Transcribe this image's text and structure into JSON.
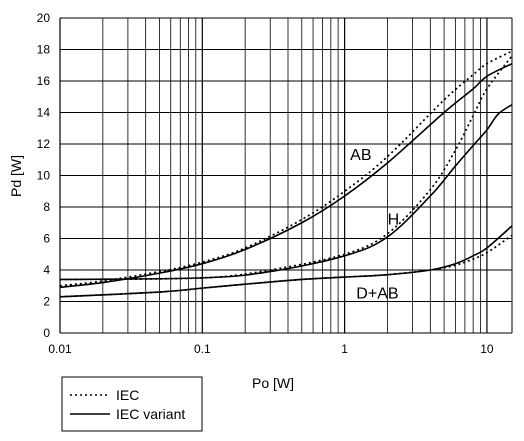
{
  "chart_data": {
    "type": "line",
    "xscale": "log",
    "xlim": [
      0.01,
      15
    ],
    "ylim": [
      0,
      20
    ],
    "xlabel": "Po [W]",
    "ylabel": "Pd [W]",
    "xticks": [
      "0.01",
      "0.1",
      "1",
      "10"
    ],
    "yticks": [
      "0",
      "2",
      "4",
      "6",
      "8",
      "10",
      "12",
      "14",
      "16",
      "18",
      "20"
    ],
    "grid": true,
    "legend_position": "bottom-left",
    "legend": [
      {
        "label": "IEC",
        "style": "dotted"
      },
      {
        "label": "IEC variant",
        "style": "solid"
      }
    ],
    "series": [
      {
        "curve": "AB",
        "style": "dotted",
        "x": [
          0.01,
          0.02,
          0.05,
          0.1,
          0.2,
          0.5,
          1,
          2,
          5,
          8,
          10,
          15
        ],
        "y": [
          3.0,
          3.3,
          3.9,
          4.5,
          5.4,
          7.2,
          9.0,
          11.2,
          14.8,
          16.4,
          17.1,
          17.9
        ]
      },
      {
        "curve": "AB",
        "style": "solid",
        "x": [
          0.01,
          0.02,
          0.05,
          0.1,
          0.2,
          0.5,
          1,
          2,
          5,
          8,
          10,
          15
        ],
        "y": [
          2.9,
          3.2,
          3.8,
          4.4,
          5.3,
          7.0,
          8.7,
          10.8,
          14.0,
          15.5,
          16.3,
          17.1
        ]
      },
      {
        "curve": "H",
        "style": "dotted",
        "x": [
          0.01,
          0.1,
          0.3,
          1,
          2,
          4,
          6,
          8,
          10,
          15
        ],
        "y": [
          3.4,
          3.5,
          4.0,
          5.0,
          6.3,
          9.1,
          11.6,
          13.8,
          15.5,
          17.6
        ]
      },
      {
        "curve": "H",
        "style": "solid",
        "x": [
          0.01,
          0.1,
          0.3,
          1,
          2,
          4,
          6,
          8,
          10,
          12,
          15
        ],
        "y": [
          3.4,
          3.5,
          3.9,
          4.9,
          6.1,
          8.7,
          10.6,
          11.9,
          12.9,
          13.9,
          14.5
        ]
      },
      {
        "curve": "D+AB",
        "style": "dotted",
        "x": [
          0.01,
          0.05,
          0.1,
          0.2,
          0.5,
          1,
          2,
          4,
          6,
          8,
          10,
          15
        ],
        "y": [
          2.3,
          2.6,
          2.85,
          3.1,
          3.4,
          3.55,
          3.7,
          4.0,
          4.3,
          4.7,
          5.1,
          6.2
        ]
      },
      {
        "curve": "D+AB",
        "style": "solid",
        "x": [
          0.01,
          0.05,
          0.1,
          0.2,
          0.5,
          1,
          2,
          4,
          6,
          8,
          10,
          15
        ],
        "y": [
          2.3,
          2.6,
          2.85,
          3.1,
          3.4,
          3.55,
          3.7,
          4.0,
          4.4,
          4.9,
          5.4,
          6.8
        ]
      }
    ],
    "annotations": [
      {
        "text": "AB",
        "x": 1.3,
        "y": 11.0
      },
      {
        "text": "H",
        "x": 2.2,
        "y": 6.9
      },
      {
        "text": "D+AB",
        "x": 1.7,
        "y": 2.2
      }
    ]
  }
}
